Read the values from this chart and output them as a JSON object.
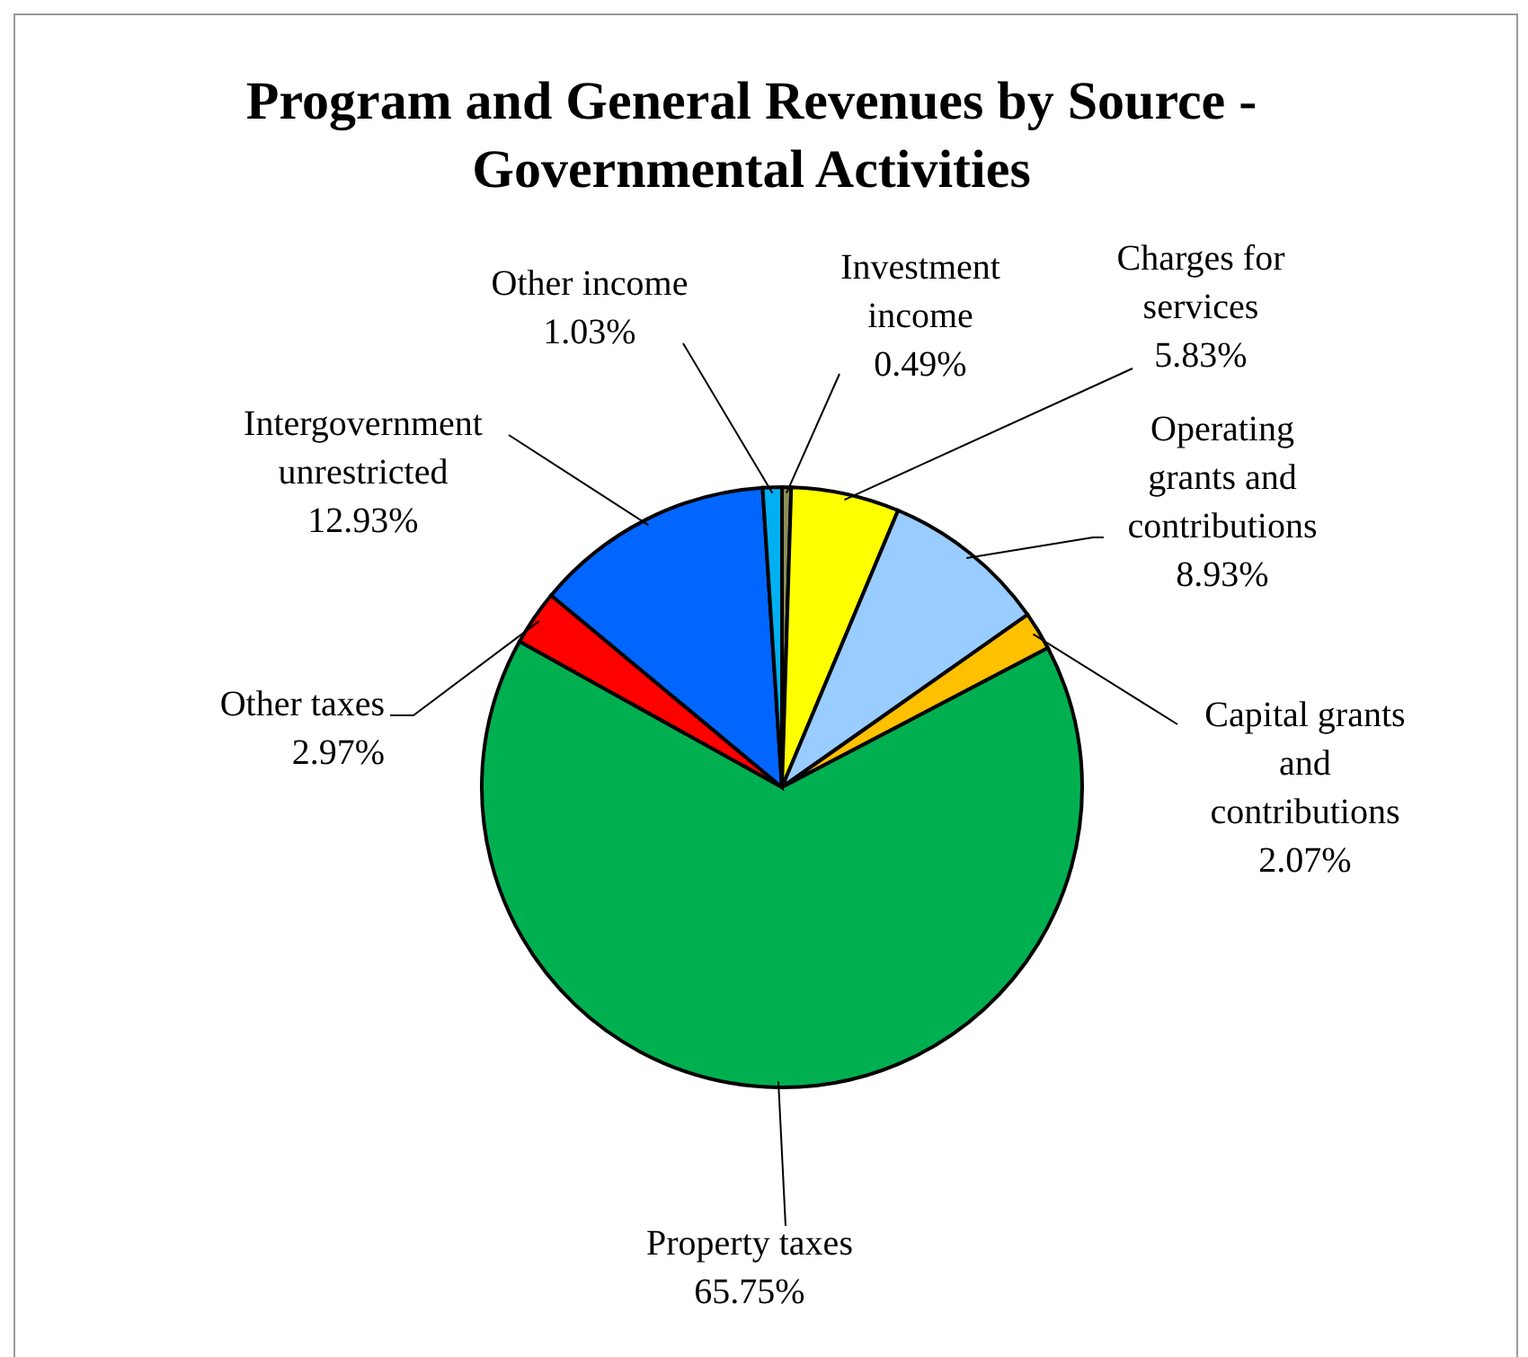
{
  "chart_data": {
    "type": "pie",
    "title": "Program and General Revenues by Source - Governmental Activities",
    "categories": [
      "Investment income",
      "Charges for services",
      "Operating grants and contributions",
      "Capital grants and contributions",
      "Property taxes",
      "Other taxes",
      "Intergovernment unrestricted",
      "Other income"
    ],
    "values": [
      0.49,
      5.83,
      8.93,
      2.07,
      65.75,
      2.97,
      12.93,
      1.03
    ],
    "colors": [
      "#8c8c5a",
      "#ffff00",
      "#99ccff",
      "#ffc000",
      "#00b050",
      "#ff0000",
      "#0066ff",
      "#00b0f0"
    ],
    "value_labels": [
      "0.49%",
      "5.83%",
      "8.93%",
      "2.07%",
      "65.75%",
      "2.97%",
      "12.93%",
      "1.03%"
    ]
  }
}
